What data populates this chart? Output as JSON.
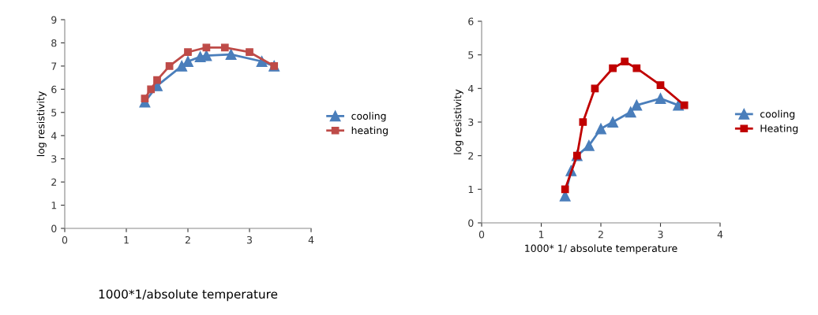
{
  "chart_data": [
    {
      "type": "line",
      "ylabel": "log resistivity",
      "xlabel": "1000*1/absolute temperature",
      "xlim": [
        0,
        4
      ],
      "xticks": [
        0,
        1,
        2,
        3,
        4
      ],
      "ylim": [
        0,
        9
      ],
      "yticks": [
        0,
        1,
        2,
        3,
        4,
        5,
        6,
        7,
        8,
        9
      ],
      "legend": "right",
      "grid": false,
      "series": [
        {
          "name": "cooling",
          "color": "#4a7ebb",
          "marker": "triangle",
          "x": [
            1.3,
            1.5,
            1.9,
            2.0,
            2.2,
            2.3,
            2.7,
            3.2,
            3.4
          ],
          "values": [
            5.45,
            6.15,
            7.0,
            7.2,
            7.4,
            7.45,
            7.5,
            7.2,
            7.0
          ]
        },
        {
          "name": "heating",
          "color": "#be4b48",
          "marker": "square",
          "x": [
            1.3,
            1.4,
            1.5,
            1.7,
            2.0,
            2.3,
            2.6,
            3.0,
            3.4
          ],
          "values": [
            5.6,
            6.0,
            6.4,
            7.0,
            7.6,
            7.8,
            7.8,
            7.6,
            7.0
          ]
        }
      ]
    },
    {
      "type": "line",
      "ylabel": "log resistivity",
      "xlabel": "1000* 1/ absolute temperature",
      "xlim": [
        0,
        4
      ],
      "xticks": [
        0,
        1,
        2,
        3,
        4
      ],
      "ylim": [
        0,
        6
      ],
      "yticks": [
        0,
        1,
        2,
        3,
        4,
        5,
        6
      ],
      "legend": "right",
      "grid": false,
      "series": [
        {
          "name": "cooling",
          "color": "#4a7ebb",
          "marker": "triangle",
          "x": [
            1.4,
            1.5,
            1.6,
            1.8,
            2.0,
            2.2,
            2.5,
            2.6,
            3.0,
            3.3
          ],
          "values": [
            0.8,
            1.55,
            2.0,
            2.3,
            2.8,
            3.0,
            3.3,
            3.5,
            3.7,
            3.5
          ]
        },
        {
          "name": "Heating",
          "color": "#c00000",
          "marker": "square",
          "x": [
            1.4,
            1.6,
            1.7,
            1.9,
            2.2,
            2.4,
            2.6,
            3.0,
            3.4
          ],
          "values": [
            1.0,
            2.0,
            3.0,
            4.0,
            4.6,
            4.8,
            4.6,
            4.1,
            3.5
          ]
        }
      ]
    }
  ]
}
